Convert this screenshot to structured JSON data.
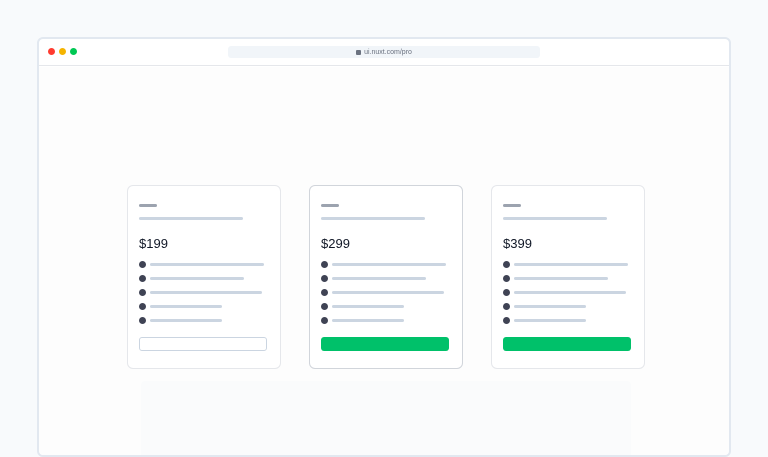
{
  "browser": {
    "url": "ui.nuxt.com/pro",
    "lock_icon": "lock-icon",
    "traffic_lights": [
      "#ff3b30",
      "#f5b400",
      "#00c853"
    ]
  },
  "colors": {
    "accent": "#00c16a",
    "bullet": "#3f4354",
    "skeleton": "#cbd5e1",
    "skeleton_dark": "#9ca3af"
  },
  "plans": [
    {
      "price": "$199",
      "button_style": "outline",
      "highlighted": false
    },
    {
      "price": "$299",
      "button_style": "filled",
      "highlighted": true
    },
    {
      "price": "$399",
      "button_style": "filled",
      "highlighted": false
    }
  ]
}
